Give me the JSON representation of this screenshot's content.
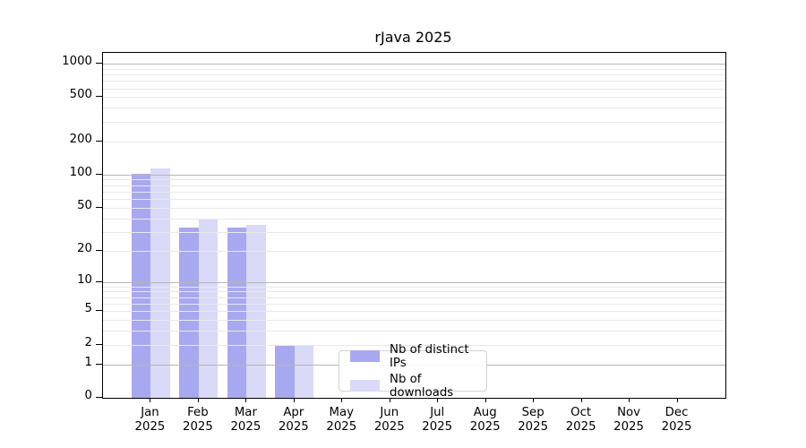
{
  "chart_data": {
    "type": "bar",
    "title": "rJava 2025",
    "categories": [
      "Jan",
      "Feb",
      "Mar",
      "Apr",
      "May",
      "Jun",
      "Jul",
      "Aug",
      "Sep",
      "Oct",
      "Nov",
      "Dec"
    ],
    "year": "2025",
    "series": [
      {
        "name": "Nb of distinct IPs",
        "color": "#a8a8f0",
        "values": [
          101,
          33,
          33,
          2,
          0,
          0,
          0,
          0,
          0,
          0,
          0,
          0
        ]
      },
      {
        "name": "Nb of downloads",
        "color": "#d9d9f8",
        "values": [
          113,
          40,
          35,
          2,
          0,
          0,
          0,
          0,
          0,
          0,
          0,
          0
        ]
      }
    ],
    "xlabel": "",
    "ylabel": "",
    "y_scale": "log1p",
    "y_ticks": [
      0,
      1,
      2,
      5,
      10,
      20,
      50,
      100,
      200,
      500,
      1000
    ],
    "y_max": 1250,
    "major_gridlines": [
      1,
      10,
      100,
      1000
    ],
    "minor_gridlines": [
      2,
      3,
      4,
      5,
      6,
      7,
      8,
      9,
      20,
      30,
      40,
      50,
      60,
      70,
      80,
      90,
      200,
      300,
      400,
      500,
      600,
      700,
      800,
      900
    ],
    "grid": true,
    "legend_position": "lower center"
  },
  "colors": {
    "background": "#ffffff",
    "axis": "#000000",
    "major_grid": "#b6b6b6",
    "minor_grid": "#e9e9e9",
    "bar_ips": "#a8a8f0",
    "bar_downloads": "#d9d9f8"
  }
}
